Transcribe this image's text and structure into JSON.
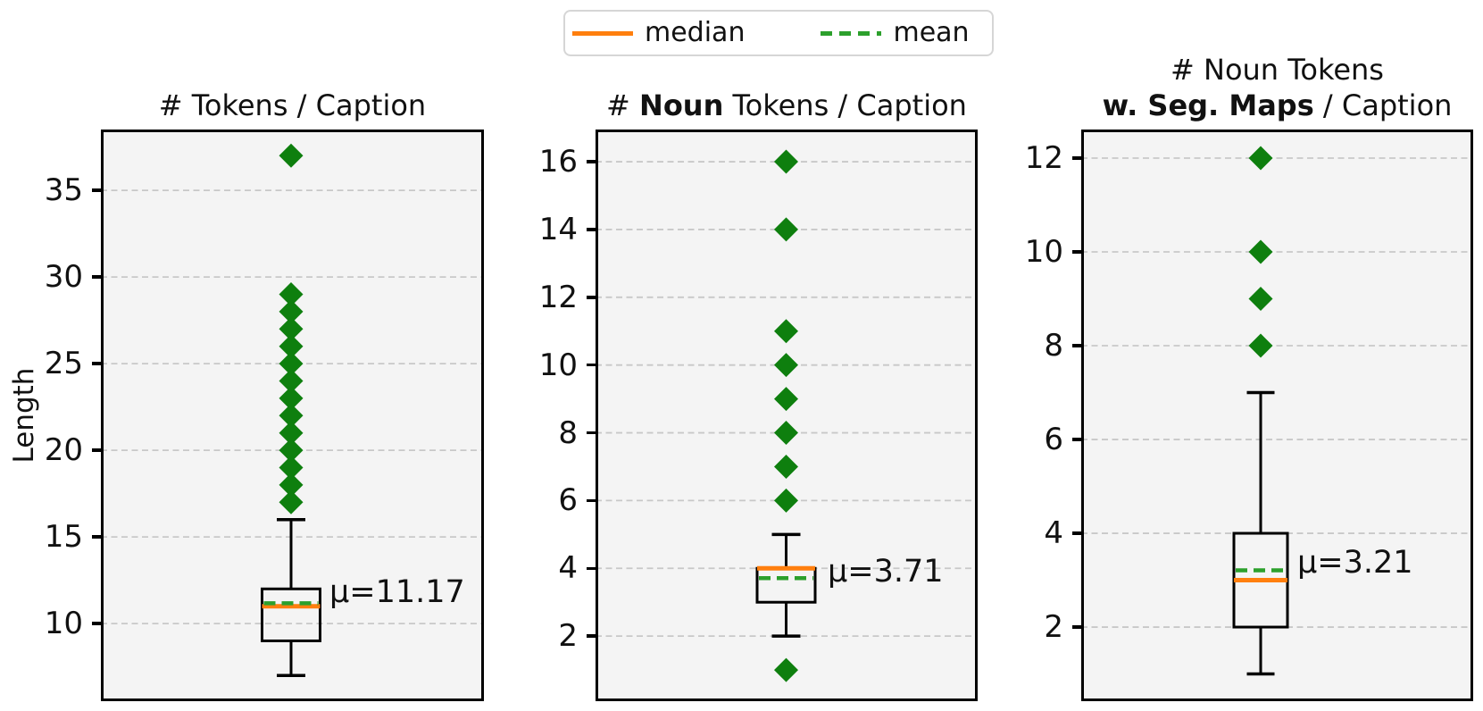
{
  "figure": {
    "ylabel": "Length"
  },
  "legend": {
    "items": [
      {
        "label": "median",
        "color": "#ff7f0e",
        "style": "solid"
      },
      {
        "label": "mean",
        "color": "#2ca02c",
        "style": "dashed"
      }
    ]
  },
  "colors": {
    "outlier": "#0e7f0e",
    "median": "#ff7f0e",
    "mean": "#2ca02c",
    "box": "#000000",
    "grid": "#c8c8c8",
    "axes_bg": "#f4f4f4",
    "spine": "#000000"
  },
  "chart_data": [
    {
      "type": "box",
      "title_lines": [
        [
          {
            "text": "# Tokens / Caption",
            "bold": false
          }
        ]
      ],
      "ylabel": "Length",
      "yticks": [
        10,
        15,
        20,
        25,
        30,
        35
      ],
      "ylim": [
        5.52,
        38.51
      ],
      "grid": true,
      "stats": {
        "whislo": 7,
        "q1": 9,
        "median": 11,
        "q3": 12,
        "whishi": 16,
        "mean": 11.17
      },
      "outliers": [
        17,
        18,
        19,
        20,
        21,
        22,
        23,
        24,
        25,
        26,
        27,
        28,
        29,
        37
      ],
      "annotation": {
        "text": "μ=11.17",
        "value": 11.8
      }
    },
    {
      "type": "box",
      "title_lines": [
        [
          {
            "text": "# ",
            "bold": false
          },
          {
            "text": "Noun",
            "bold": true
          },
          {
            "text": " Tokens / Caption",
            "bold": false
          }
        ]
      ],
      "yticks": [
        2,
        4,
        6,
        8,
        10,
        12,
        14,
        16
      ],
      "ylim": [
        0.08,
        16.95
      ],
      "grid": true,
      "stats": {
        "whislo": 2,
        "q1": 3,
        "median": 4,
        "q3": 4,
        "whishi": 5,
        "mean": 3.71
      },
      "outliers": [
        1,
        6,
        7,
        8,
        9,
        10,
        11,
        14,
        16
      ],
      "annotation": {
        "text": "μ=3.71",
        "value": 3.9
      }
    },
    {
      "type": "box",
      "title_lines": [
        [
          {
            "text": "# Noun Tokens",
            "bold": false
          }
        ],
        [
          {
            "text": "w. Seg. Maps",
            "bold": true
          },
          {
            "text": " / Caption",
            "bold": false
          }
        ]
      ],
      "yticks": [
        2,
        4,
        6,
        8,
        10,
        12
      ],
      "ylim": [
        0.42,
        12.61
      ],
      "grid": true,
      "stats": {
        "whislo": 1,
        "q1": 2,
        "median": 3,
        "q3": 4,
        "whishi": 7,
        "mean": 3.21
      },
      "outliers": [
        8,
        9,
        10,
        12
      ],
      "annotation": {
        "text": "μ=3.21",
        "value": 3.37
      }
    }
  ]
}
